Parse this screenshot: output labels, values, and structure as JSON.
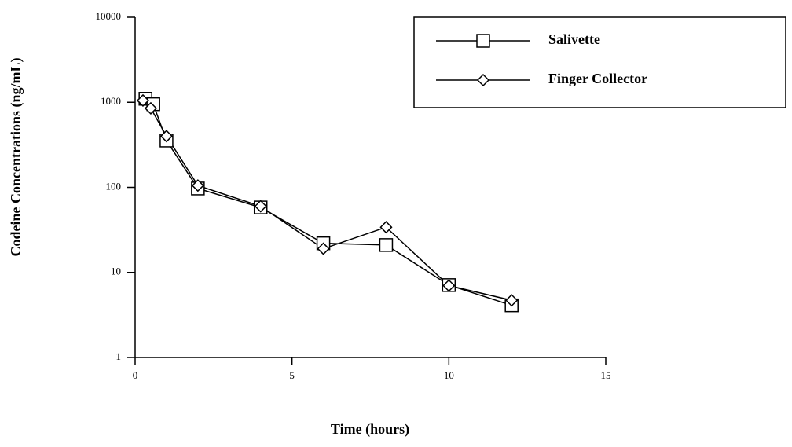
{
  "chart_data": {
    "type": "line",
    "xlabel": "Time (hours)",
    "ylabel": "Codeine Concentrations (ng/mL)",
    "xlim": [
      0,
      15
    ],
    "xticks": [
      0,
      5,
      10,
      15
    ],
    "ylim": [
      1,
      10000
    ],
    "yticks": [
      1,
      10,
      100,
      1000,
      10000
    ],
    "yscale": "log",
    "legend": "top-right",
    "series": [
      {
        "name": "Salivette",
        "color": "#000000",
        "marker": "square",
        "x": [
          0.33,
          0.58,
          1.0,
          2.0,
          4.0,
          6.0,
          8.0,
          10.0,
          12.0
        ],
        "values": [
          1100,
          950,
          355,
          97,
          58,
          22,
          21,
          7.1,
          4.1
        ]
      },
      {
        "name": "Finger Collector",
        "color": "#000000",
        "marker": "diamond",
        "x": [
          0.25,
          0.5,
          1.0,
          2.0,
          4.0,
          6.0,
          8.0,
          10.0,
          12.0
        ],
        "values": [
          1050,
          850,
          400,
          105,
          60,
          19,
          34,
          7,
          4.7
        ]
      }
    ]
  }
}
